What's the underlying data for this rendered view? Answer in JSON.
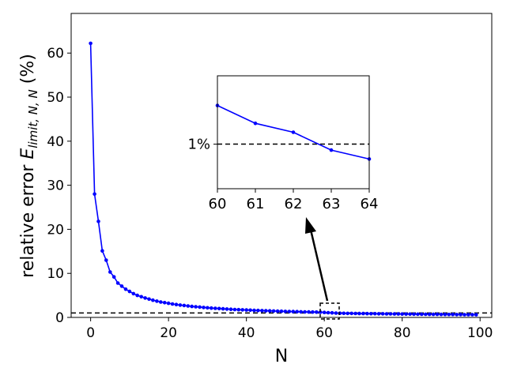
{
  "chart_data": [
    {
      "type": "line",
      "xlabel": "N",
      "ylabel_prefix": "relative error ",
      "ylabel_symbol": "E",
      "ylabel_subscript": "limit, N, N",
      "ylabel_suffix": " (%)",
      "xlim": [
        -5,
        103
      ],
      "ylim": [
        0,
        69
      ],
      "xticks": [
        "0",
        "20",
        "40",
        "60",
        "80",
        "100"
      ],
      "yticks": [
        "0",
        "10",
        "20",
        "30",
        "40",
        "50",
        "60"
      ],
      "grid": false,
      "series_color": "#0000ff",
      "threshold_y": 1.0,
      "x": [
        0,
        1,
        2,
        3,
        4,
        5,
        6,
        7,
        8,
        9,
        10,
        11,
        12,
        13,
        14,
        15,
        16,
        17,
        18,
        19,
        20,
        21,
        22,
        23,
        24,
        25,
        26,
        27,
        28,
        29,
        30,
        31,
        32,
        33,
        34,
        35,
        36,
        37,
        38,
        39,
        40,
        41,
        42,
        43,
        44,
        45,
        46,
        47,
        48,
        49,
        50,
        51,
        52,
        53,
        54,
        55,
        56,
        57,
        58,
        59,
        60,
        61,
        62,
        63,
        64,
        65,
        66,
        67,
        68,
        69,
        70,
        71,
        72,
        73,
        74,
        75,
        76,
        77,
        78,
        79,
        80,
        81,
        82,
        83,
        84,
        85,
        86,
        87,
        88,
        89,
        90,
        91,
        92,
        93,
        94,
        95,
        96,
        97,
        98,
        99
      ],
      "y": [
        62.2,
        28.0,
        21.8,
        15.1,
        13.0,
        10.3,
        9.2,
        7.8,
        7.1,
        6.4,
        5.9,
        5.4,
        5.0,
        4.7,
        4.4,
        4.15,
        3.9,
        3.7,
        3.5,
        3.35,
        3.2,
        3.05,
        2.92,
        2.8,
        2.7,
        2.6,
        2.5,
        2.42,
        2.34,
        2.26,
        2.19,
        2.12,
        2.06,
        2.0,
        1.95,
        1.9,
        1.85,
        1.8,
        1.76,
        1.72,
        1.68,
        1.64,
        1.6,
        1.57,
        1.54,
        1.51,
        1.48,
        1.45,
        1.42,
        1.39,
        1.37,
        1.35,
        1.32,
        1.3,
        1.28,
        1.26,
        1.24,
        1.22,
        1.2,
        1.18,
        1.13,
        1.07,
        1.04,
        0.98,
        0.95,
        0.94,
        0.92,
        0.91,
        0.89,
        0.88,
        0.87,
        0.86,
        0.85,
        0.84,
        0.83,
        0.82,
        0.81,
        0.8,
        0.79,
        0.78,
        0.77,
        0.76,
        0.75,
        0.74,
        0.73,
        0.72,
        0.71,
        0.7,
        0.7,
        0.69,
        0.68,
        0.67,
        0.66,
        0.66,
        0.65,
        0.64,
        0.63,
        0.63,
        0.62,
        0.61
      ]
    },
    {
      "type": "line",
      "panel": "inset",
      "xlim": [
        60,
        64
      ],
      "xticks": [
        "60",
        "61",
        "62",
        "63",
        "64"
      ],
      "ytick_label": "1%",
      "x": [
        60,
        61,
        62,
        63,
        64
      ],
      "y": [
        1.13,
        1.07,
        1.04,
        0.98,
        0.95
      ],
      "ylim": [
        0.85,
        1.23
      ],
      "threshold_y": 1.0
    }
  ]
}
